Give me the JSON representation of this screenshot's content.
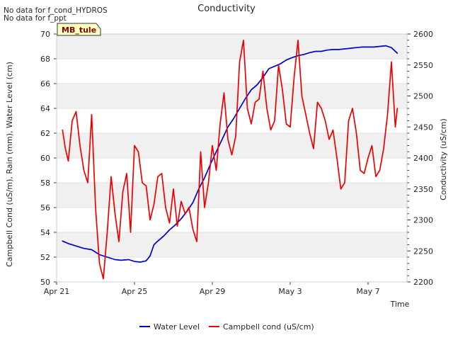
{
  "chart_data": {
    "type": "line",
    "title": "Conductivity",
    "xlabel": "Time",
    "ylabel_left": "Campbell Cond (uS/m), Rain (mm), Water Level (cm)",
    "ylabel_right": "Conductivity (uS/cm)",
    "notes": [
      "No data for f_cond_HYDROS",
      "No data for f_ppt"
    ],
    "badge": "MB_tule",
    "x_range_days": [
      0,
      18
    ],
    "x_ticks": [
      {
        "day": 0,
        "label": "Apr 21"
      },
      {
        "day": 4,
        "label": "Apr 25"
      },
      {
        "day": 8,
        "label": "Apr 29"
      },
      {
        "day": 12,
        "label": "May 3"
      },
      {
        "day": 16,
        "label": "May 7"
      }
    ],
    "ylim_left": [
      50,
      70
    ],
    "left_ticks": [
      50,
      52,
      54,
      56,
      58,
      60,
      62,
      64,
      66,
      68,
      70
    ],
    "ylim_right": [
      2200,
      2600
    ],
    "right_ticks": [
      2200,
      2250,
      2300,
      2350,
      2400,
      2450,
      2500,
      2550,
      2600
    ],
    "grid": "horizontal bands",
    "legend_position": "bottom-center",
    "colors": {
      "water_level": "#0000cc",
      "campbell_cond": "#ee0000",
      "band": "#f0f0f0"
    },
    "series": [
      {
        "name": "Water Level",
        "axis": "left",
        "x": [
          0.3,
          0.6,
          1.0,
          1.4,
          1.8,
          2.2,
          2.6,
          3.0,
          3.3,
          3.7,
          4.0,
          4.3,
          4.6,
          4.8,
          5.0,
          5.2,
          5.5,
          5.8,
          6.1,
          6.4,
          6.7,
          7.0,
          7.3,
          7.6,
          7.9,
          8.2,
          8.5,
          8.8,
          9.1,
          9.4,
          9.7,
          10.0,
          10.3,
          10.6,
          10.9,
          11.2,
          11.5,
          11.8,
          12.1,
          12.4,
          12.7,
          13.0,
          13.3,
          13.6,
          13.9,
          14.2,
          14.5,
          14.8,
          15.1,
          15.4,
          15.7,
          16.0,
          16.3,
          16.6,
          16.9,
          17.2,
          17.5
        ],
        "values": [
          53.3,
          53.1,
          52.9,
          52.7,
          52.6,
          52.2,
          52.0,
          51.8,
          51.75,
          51.8,
          51.65,
          51.6,
          51.7,
          52.1,
          53.0,
          53.3,
          53.7,
          54.2,
          54.6,
          55.1,
          55.7,
          56.4,
          57.5,
          58.4,
          59.5,
          60.5,
          61.5,
          62.5,
          63.2,
          64.0,
          64.8,
          65.5,
          65.9,
          66.5,
          67.2,
          67.4,
          67.6,
          67.9,
          68.1,
          68.25,
          68.35,
          68.5,
          68.6,
          68.6,
          68.7,
          68.75,
          68.75,
          68.8,
          68.85,
          68.9,
          68.95,
          68.95,
          68.95,
          69.0,
          69.05,
          68.9,
          68.45
        ]
      },
      {
        "name": "Campbell cond (uS/cm)",
        "axis": "right",
        "x": [
          0.3,
          0.45,
          0.6,
          0.8,
          1.0,
          1.2,
          1.4,
          1.6,
          1.8,
          2.0,
          2.2,
          2.4,
          2.6,
          2.8,
          3.0,
          3.2,
          3.4,
          3.6,
          3.8,
          4.0,
          4.2,
          4.4,
          4.6,
          4.8,
          5.0,
          5.2,
          5.4,
          5.6,
          5.8,
          6.0,
          6.2,
          6.4,
          6.6,
          6.8,
          7.0,
          7.2,
          7.4,
          7.6,
          7.8,
          8.0,
          8.2,
          8.4,
          8.6,
          8.8,
          9.0,
          9.2,
          9.4,
          9.6,
          9.8,
          10.0,
          10.2,
          10.4,
          10.6,
          10.8,
          11.0,
          11.2,
          11.4,
          11.6,
          11.8,
          12.0,
          12.2,
          12.4,
          12.6,
          12.8,
          13.0,
          13.2,
          13.4,
          13.6,
          13.8,
          14.0,
          14.2,
          14.4,
          14.6,
          14.8,
          15.0,
          15.2,
          15.4,
          15.6,
          15.8,
          16.0,
          16.2,
          16.4,
          16.6,
          16.8,
          17.0,
          17.2,
          17.4,
          17.5
        ],
        "values": [
          2445,
          2415,
          2395,
          2460,
          2475,
          2420,
          2380,
          2360,
          2470,
          2320,
          2230,
          2205,
          2280,
          2370,
          2310,
          2265,
          2345,
          2375,
          2280,
          2420,
          2410,
          2360,
          2355,
          2300,
          2325,
          2370,
          2375,
          2320,
          2295,
          2350,
          2290,
          2330,
          2310,
          2320,
          2285,
          2265,
          2410,
          2320,
          2360,
          2420,
          2380,
          2455,
          2505,
          2430,
          2405,
          2435,
          2555,
          2590,
          2480,
          2455,
          2490,
          2495,
          2540,
          2480,
          2445,
          2460,
          2550,
          2510,
          2455,
          2450,
          2530,
          2590,
          2500,
          2470,
          2440,
          2415,
          2490,
          2480,
          2460,
          2430,
          2445,
          2400,
          2350,
          2360,
          2460,
          2480,
          2440,
          2380,
          2375,
          2400,
          2420,
          2370,
          2380,
          2415,
          2470,
          2555,
          2450,
          2480
        ]
      }
    ]
  }
}
